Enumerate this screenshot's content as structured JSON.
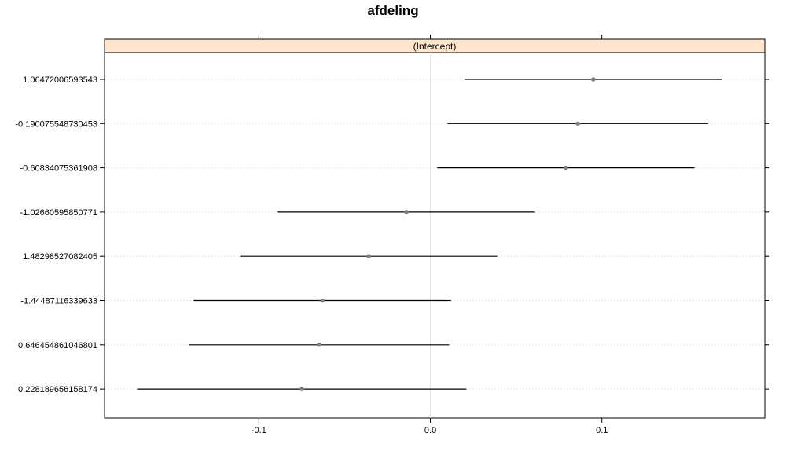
{
  "chart_data": {
    "type": "dotplot",
    "title": "afdeling",
    "panel_label": "(Intercept)",
    "x_ticks": [
      "-0.1",
      "0.0",
      "0.1"
    ],
    "x_tick_values": [
      -0.1,
      0.0,
      0.1
    ],
    "xlim": [
      -0.19,
      0.195
    ],
    "categories": [
      "1.06472006593543",
      "-0.190075548730453",
      "-0.60834075361908",
      "-1.02660595850771",
      "1.48298527082405",
      "-1.44487116339633",
      "0.646454861046801",
      "0.228189656158174"
    ],
    "estimates": [
      0.095,
      0.086,
      0.079,
      -0.014,
      -0.036,
      -0.063,
      -0.065,
      -0.075
    ],
    "lower": [
      0.02,
      0.01,
      0.004,
      -0.089,
      -0.111,
      -0.138,
      -0.141,
      -0.171
    ],
    "upper": [
      0.17,
      0.162,
      0.154,
      0.061,
      0.039,
      0.012,
      0.011,
      0.021
    ],
    "grid": true,
    "colors": {
      "strip_background": "#ffe5cc",
      "point": "#808080",
      "interval": "#000000",
      "gridline": "#e6e6e6"
    }
  }
}
